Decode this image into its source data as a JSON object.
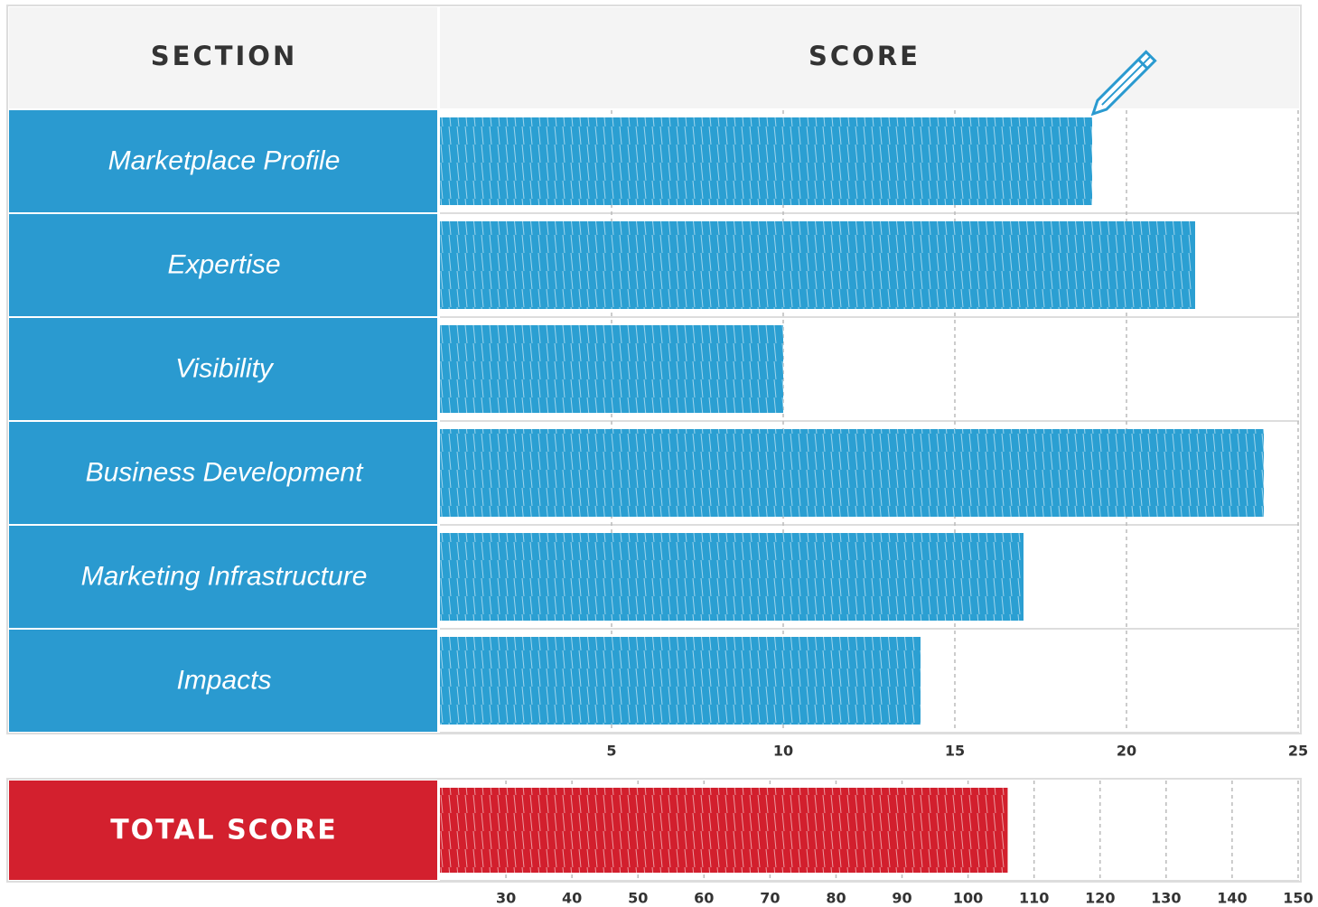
{
  "header": {
    "section": "SECTION",
    "score": "SCORE"
  },
  "chart_data": [
    {
      "type": "bar",
      "orientation": "horizontal",
      "categories": [
        "Marketplace Profile",
        "Expertise",
        "Visibility",
        "Business Development",
        "Marketing Infrastructure",
        "Impacts"
      ],
      "values": [
        19,
        22,
        10,
        24,
        17,
        14
      ],
      "color": "#2b9fd2",
      "label_color": "#2a9ad0",
      "xlim": [
        0,
        25
      ],
      "xticks": [
        5,
        10,
        15,
        20,
        25
      ],
      "grid": true
    },
    {
      "type": "bar",
      "orientation": "horizontal",
      "categories": [
        "TOTAL SCORE"
      ],
      "values": [
        106
      ],
      "color": "#d21f2d",
      "label_color": "#d3202e",
      "xlim": [
        20,
        150
      ],
      "xticks": [
        30,
        40,
        50,
        60,
        70,
        80,
        90,
        100,
        110,
        120,
        130,
        140,
        150
      ],
      "grid": true
    }
  ]
}
